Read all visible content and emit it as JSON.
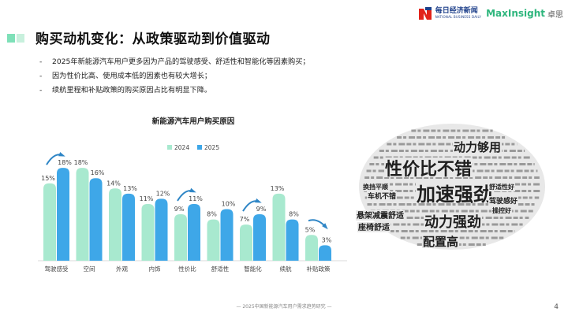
{
  "header": {
    "title": "购买动机变化：从政策驱动到价值驱动",
    "logo_nbd_cn": "每日经济新闻",
    "logo_nbd_en": "NATIONAL BUSINESS DAILY",
    "logo_mi": "MaxInsight",
    "logo_mi_cn": "卓思"
  },
  "bullets": [
    "2025年新能源汽车用户更多因为产品的驾驶感受、舒适性和智能化等因素购买；",
    "因为性价比高、使用成本低的因素也有较大增长；",
    "续航里程和补贴政策的购买原因占比有明显下降。"
  ],
  "bullet_marker": "-",
  "colors": {
    "series_2024": "#a8e9cf",
    "series_2025": "#3ea7e8",
    "title_marker": "#7ee0b8",
    "arrow": "#2f86c6",
    "cloud": "#1f1f1f"
  },
  "chart_data": {
    "type": "bar",
    "title": "新能源汽车用户购买原因",
    "categories": [
      "驾驶感受",
      "空间",
      "外观",
      "内饰",
      "性价比",
      "舒适性",
      "智能化",
      "续航",
      "补贴政策"
    ],
    "series": [
      {
        "name": "2024",
        "values": [
          15,
          18,
          14,
          11,
          9,
          8,
          7,
          13,
          5
        ]
      },
      {
        "name": "2025",
        "values": [
          18,
          16,
          13,
          12,
          11,
          10,
          9,
          8,
          3
        ]
      }
    ],
    "value_suffix": "%",
    "trend_arrows": [
      {
        "category": "驾驶感受",
        "direction": "up"
      },
      {
        "category": "性价比",
        "direction": "up"
      },
      {
        "category": "智能化",
        "direction": "up"
      },
      {
        "category": "补贴政策",
        "direction": "down"
      }
    ],
    "legend_position": "top-center",
    "grid": false
  },
  "word_cloud": {
    "words": [
      "动力够用",
      "性价比不错",
      "加速强劲",
      "动力强劲",
      "配置高",
      "舒适性好",
      "悬架减震舒适",
      "座椅舒适",
      "车机不错",
      "换挡平顺",
      "驾驶感好",
      "操控好"
    ]
  },
  "footer": "— 2025中国新能源汽车用户需求趋势研究 —",
  "page_number": "4"
}
